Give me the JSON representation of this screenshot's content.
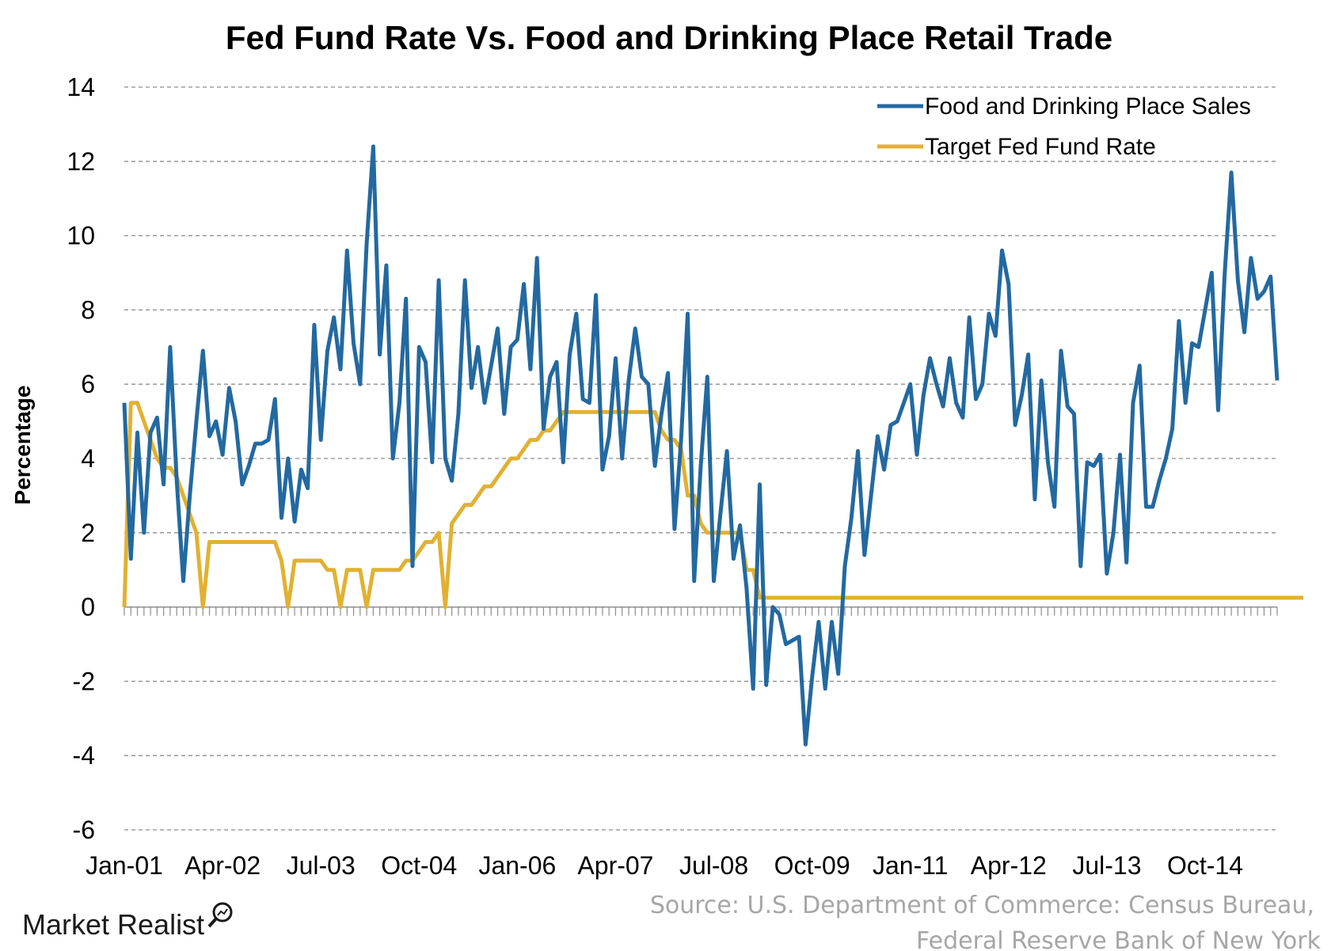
{
  "chart_data": {
    "type": "line",
    "title": "Fed Fund Rate Vs. Food and Drinking Place Retail Trade",
    "ylabel": "Percentage",
    "xlabel": "",
    "ylim": [
      -6,
      14
    ],
    "yticks": [
      "14",
      "12",
      "10",
      "8",
      "6",
      "4",
      "2",
      "0",
      "-2",
      "-4",
      "-6"
    ],
    "xticks": [
      "Jan-01",
      "Apr-02",
      "Jul-03",
      "Oct-04",
      "Jan-06",
      "Apr-07",
      "Jul-08",
      "Oct-09",
      "Jan-11",
      "Apr-12",
      "Jul-13",
      "Oct-14"
    ],
    "x_start": "Jan-01",
    "x_end": "Dec-15",
    "grid": true,
    "legend_position": "top-right",
    "series": [
      {
        "name": "Food and Drinking Place Sales",
        "color": "#2369a0",
        "values": [
          5.5,
          1.3,
          4.7,
          2.0,
          4.7,
          5.1,
          3.3,
          7.0,
          3.4,
          0.7,
          3.0,
          5.0,
          6.9,
          4.6,
          5.0,
          4.1,
          5.9,
          5.0,
          3.3,
          3.8,
          4.4,
          4.4,
          4.5,
          5.6,
          2.4,
          4.0,
          2.3,
          3.7,
          3.2,
          7.6,
          4.5,
          6.9,
          7.8,
          6.4,
          9.6,
          7.1,
          6.0,
          9.8,
          12.4,
          6.8,
          9.2,
          4.0,
          5.5,
          8.3,
          1.1,
          7.0,
          6.6,
          3.9,
          8.8,
          4.0,
          3.4,
          5.2,
          8.8,
          5.9,
          7.0,
          5.5,
          6.5,
          7.5,
          5.2,
          7.0,
          7.2,
          8.7,
          6.4,
          9.4,
          4.8,
          6.2,
          6.6,
          3.9,
          6.8,
          7.9,
          5.6,
          5.5,
          8.4,
          3.7,
          4.6,
          6.7,
          4.0,
          6.1,
          7.5,
          6.2,
          6.0,
          3.8,
          5.2,
          6.3,
          2.1,
          4.5,
          7.9,
          0.7,
          3.8,
          6.2,
          0.7,
          2.5,
          4.2,
          1.3,
          2.2,
          0.5,
          -2.2,
          3.3,
          -2.1,
          0.0,
          -0.2,
          -1.0,
          -0.9,
          -0.8,
          -3.7,
          -1.9,
          -0.4,
          -2.2,
          -0.4,
          -1.8,
          1.1,
          2.4,
          4.2,
          1.4,
          3.0,
          4.6,
          3.7,
          4.9,
          5.0,
          5.5,
          6.0,
          4.1,
          5.7,
          6.7,
          6.0,
          5.4,
          6.7,
          5.5,
          5.1,
          7.8,
          5.6,
          6.0,
          7.9,
          7.3,
          9.6,
          8.7,
          4.9,
          5.7,
          6.8,
          2.9,
          6.1,
          3.9,
          2.7,
          6.9,
          5.4,
          5.2,
          1.1,
          3.9,
          3.8,
          4.1,
          0.9,
          2.0,
          4.1,
          1.2,
          5.5,
          6.5,
          2.7,
          2.7,
          3.4,
          4.0,
          4.8,
          7.7,
          5.5,
          7.1,
          7.0,
          8.0,
          9.0,
          5.3,
          9.0,
          11.7,
          8.8,
          7.4,
          9.4,
          8.3,
          8.5,
          8.9,
          6.1
        ]
      },
      {
        "name": "Target Fed Fund Rate",
        "color": "#e1b131",
        "values": [
          0.0,
          5.5,
          5.5,
          5.0,
          4.5,
          4.0,
          3.75,
          3.75,
          3.5,
          3.0,
          2.5,
          2.0,
          0.0,
          1.75,
          1.75,
          1.75,
          1.75,
          1.75,
          1.75,
          1.75,
          1.75,
          1.75,
          1.75,
          1.75,
          1.25,
          0.0,
          1.25,
          1.25,
          1.25,
          1.25,
          1.25,
          1.0,
          1.0,
          0.0,
          1.0,
          1.0,
          1.0,
          0.0,
          1.0,
          1.0,
          1.0,
          1.0,
          1.0,
          1.25,
          1.25,
          1.5,
          1.75,
          1.75,
          2.0,
          0.0,
          2.25,
          2.5,
          2.75,
          2.75,
          3.0,
          3.25,
          3.25,
          3.5,
          3.75,
          4.0,
          4.0,
          4.25,
          4.5,
          4.5,
          4.75,
          4.75,
          5.0,
          5.25,
          5.25,
          5.25,
          5.25,
          5.25,
          5.25,
          5.25,
          5.25,
          5.25,
          5.25,
          5.25,
          5.25,
          5.25,
          5.25,
          5.25,
          4.75,
          4.5,
          4.5,
          4.25,
          3.0,
          3.0,
          2.25,
          2.0,
          2.0,
          2.0,
          2.0,
          2.0,
          2.0,
          1.0,
          1.0,
          0.25,
          0.25,
          0.25,
          0.25,
          0.25,
          0.25,
          0.25,
          0.25,
          0.25,
          0.25,
          0.25,
          0.25,
          0.25,
          0.25,
          0.25,
          0.25,
          0.25,
          0.25,
          0.25,
          0.25,
          0.25,
          0.25,
          0.25,
          0.25,
          0.25,
          0.25,
          0.25,
          0.25,
          0.25,
          0.25,
          0.25,
          0.25,
          0.25,
          0.25,
          0.25,
          0.25,
          0.25,
          0.25,
          0.25,
          0.25,
          0.25,
          0.25,
          0.25,
          0.25,
          0.25,
          0.25,
          0.25,
          0.25,
          0.25,
          0.25,
          0.25,
          0.25,
          0.25,
          0.25,
          0.25,
          0.25,
          0.25,
          0.25,
          0.25,
          0.25,
          0.25,
          0.25,
          0.25,
          0.25,
          0.25,
          0.25,
          0.25,
          0.25,
          0.25,
          0.25,
          0.25,
          0.25,
          0.25,
          0.25,
          0.25,
          0.25,
          0.25,
          0.25,
          0.25,
          0.25,
          0.25,
          0.25,
          0.25,
          0.25
        ]
      }
    ]
  },
  "source": {
    "line1": "Source: U.S. Department of Commerce: Census Bureau,",
    "line2": "Federal Reserve Bank of New York"
  },
  "brand": {
    "name": "Market Realist"
  }
}
